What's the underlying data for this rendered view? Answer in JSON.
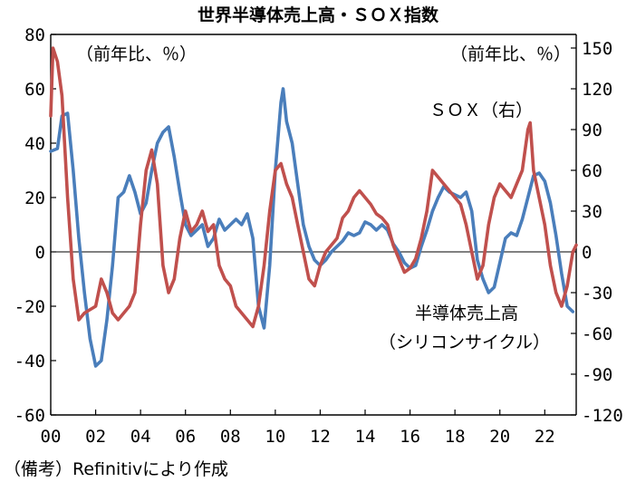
{
  "chart_data": {
    "type": "line",
    "title": "世界半導体売上高・ＳＯＸ指数",
    "left_axis": {
      "unit_label": "（前年比、％）",
      "ylim": [
        -60,
        80
      ],
      "ticks": [
        "80",
        "60",
        "40",
        "20",
        "0",
        "-20",
        "-40",
        "-60"
      ]
    },
    "right_axis": {
      "unit_label": "（前年比、％）",
      "ylim": [
        -120,
        160
      ],
      "ticks": [
        "150",
        "120",
        "90",
        "60",
        "30",
        "0",
        "-30",
        "-60",
        "-90",
        "-120"
      ]
    },
    "x_ticks": [
      "00",
      "02",
      "04",
      "06",
      "08",
      "10",
      "12",
      "14",
      "16",
      "18",
      "20",
      "22"
    ],
    "xlim": [
      2000,
      2023.4
    ],
    "source": "（備考）Refinitivにより作成",
    "series": [
      {
        "name": "半導体売上高",
        "name_line2": "（シリコンサイクル）",
        "axis": "left",
        "color": "#4a7ebb",
        "points": [
          [
            2000.0,
            37
          ],
          [
            2000.3,
            38
          ],
          [
            2000.5,
            50
          ],
          [
            2000.75,
            51
          ],
          [
            2001.0,
            30
          ],
          [
            2001.25,
            5
          ],
          [
            2001.5,
            -15
          ],
          [
            2001.75,
            -32
          ],
          [
            2002.0,
            -42
          ],
          [
            2002.25,
            -40
          ],
          [
            2002.5,
            -25
          ],
          [
            2002.75,
            -5
          ],
          [
            2003.0,
            20
          ],
          [
            2003.25,
            22
          ],
          [
            2003.5,
            28
          ],
          [
            2003.75,
            22
          ],
          [
            2004.0,
            14
          ],
          [
            2004.25,
            18
          ],
          [
            2004.5,
            30
          ],
          [
            2004.75,
            40
          ],
          [
            2005.0,
            44
          ],
          [
            2005.25,
            46
          ],
          [
            2005.5,
            35
          ],
          [
            2005.75,
            22
          ],
          [
            2006.0,
            10
          ],
          [
            2006.25,
            6
          ],
          [
            2006.5,
            8
          ],
          [
            2006.75,
            10
          ],
          [
            2007.0,
            2
          ],
          [
            2007.25,
            5
          ],
          [
            2007.5,
            12
          ],
          [
            2007.75,
            8
          ],
          [
            2008.0,
            10
          ],
          [
            2008.25,
            12
          ],
          [
            2008.5,
            10
          ],
          [
            2008.75,
            14
          ],
          [
            2009.0,
            5
          ],
          [
            2009.25,
            -20
          ],
          [
            2009.5,
            -28
          ],
          [
            2009.75,
            -5
          ],
          [
            2010.0,
            30
          ],
          [
            2010.25,
            55
          ],
          [
            2010.35,
            60
          ],
          [
            2010.5,
            48
          ],
          [
            2010.75,
            40
          ],
          [
            2011.0,
            25
          ],
          [
            2011.25,
            10
          ],
          [
            2011.5,
            2
          ],
          [
            2011.75,
            -3
          ],
          [
            2012.0,
            -5
          ],
          [
            2012.25,
            -3
          ],
          [
            2012.5,
            0
          ],
          [
            2012.75,
            2
          ],
          [
            2013.0,
            4
          ],
          [
            2013.25,
            7
          ],
          [
            2013.5,
            6
          ],
          [
            2013.75,
            7
          ],
          [
            2014.0,
            11
          ],
          [
            2014.25,
            10
          ],
          [
            2014.5,
            8
          ],
          [
            2014.75,
            10
          ],
          [
            2015.0,
            8
          ],
          [
            2015.25,
            3
          ],
          [
            2015.5,
            0
          ],
          [
            2015.75,
            -4
          ],
          [
            2016.0,
            -6
          ],
          [
            2016.25,
            -5
          ],
          [
            2016.5,
            2
          ],
          [
            2016.75,
            8
          ],
          [
            2017.0,
            15
          ],
          [
            2017.25,
            20
          ],
          [
            2017.5,
            24
          ],
          [
            2017.75,
            22
          ],
          [
            2018.0,
            21
          ],
          [
            2018.25,
            20
          ],
          [
            2018.5,
            22
          ],
          [
            2018.75,
            15
          ],
          [
            2019.0,
            -3
          ],
          [
            2019.25,
            -10
          ],
          [
            2019.5,
            -15
          ],
          [
            2019.75,
            -13
          ],
          [
            2020.0,
            -4
          ],
          [
            2020.25,
            5
          ],
          [
            2020.5,
            7
          ],
          [
            2020.75,
            6
          ],
          [
            2021.0,
            12
          ],
          [
            2021.25,
            20
          ],
          [
            2021.5,
            28
          ],
          [
            2021.75,
            29
          ],
          [
            2022.0,
            26
          ],
          [
            2022.25,
            18
          ],
          [
            2022.5,
            6
          ],
          [
            2022.75,
            -8
          ],
          [
            2023.0,
            -20
          ],
          [
            2023.25,
            -22
          ]
        ]
      },
      {
        "name": "ＳＯＸ（右）",
        "axis": "right",
        "color": "#c0504d",
        "points": [
          [
            2000.0,
            100
          ],
          [
            2000.1,
            150
          ],
          [
            2000.3,
            140
          ],
          [
            2000.5,
            115
          ],
          [
            2000.75,
            40
          ],
          [
            2001.0,
            -20
          ],
          [
            2001.25,
            -50
          ],
          [
            2001.5,
            -45
          ],
          [
            2002.0,
            -40
          ],
          [
            2002.25,
            -20
          ],
          [
            2002.5,
            -30
          ],
          [
            2002.75,
            -45
          ],
          [
            2003.0,
            -50
          ],
          [
            2003.25,
            -45
          ],
          [
            2003.5,
            -40
          ],
          [
            2003.75,
            -30
          ],
          [
            2004.0,
            20
          ],
          [
            2004.25,
            60
          ],
          [
            2004.5,
            75
          ],
          [
            2004.75,
            50
          ],
          [
            2005.0,
            -10
          ],
          [
            2005.25,
            -30
          ],
          [
            2005.5,
            -20
          ],
          [
            2005.75,
            10
          ],
          [
            2006.0,
            30
          ],
          [
            2006.25,
            15
          ],
          [
            2006.5,
            20
          ],
          [
            2006.75,
            30
          ],
          [
            2007.0,
            15
          ],
          [
            2007.25,
            20
          ],
          [
            2007.5,
            -10
          ],
          [
            2007.75,
            -20
          ],
          [
            2008.0,
            -25
          ],
          [
            2008.25,
            -40
          ],
          [
            2008.5,
            -45
          ],
          [
            2008.75,
            -50
          ],
          [
            2009.0,
            -55
          ],
          [
            2009.25,
            -40
          ],
          [
            2009.5,
            -10
          ],
          [
            2009.75,
            30
          ],
          [
            2010.0,
            60
          ],
          [
            2010.25,
            65
          ],
          [
            2010.5,
            50
          ],
          [
            2010.75,
            40
          ],
          [
            2011.0,
            20
          ],
          [
            2011.25,
            0
          ],
          [
            2011.5,
            -20
          ],
          [
            2011.75,
            -25
          ],
          [
            2012.0,
            -10
          ],
          [
            2012.25,
            0
          ],
          [
            2012.5,
            5
          ],
          [
            2012.75,
            10
          ],
          [
            2013.0,
            25
          ],
          [
            2013.25,
            30
          ],
          [
            2013.5,
            40
          ],
          [
            2013.75,
            45
          ],
          [
            2014.0,
            40
          ],
          [
            2014.25,
            35
          ],
          [
            2014.5,
            28
          ],
          [
            2014.75,
            25
          ],
          [
            2015.0,
            20
          ],
          [
            2015.25,
            5
          ],
          [
            2015.5,
            -5
          ],
          [
            2015.75,
            -15
          ],
          [
            2016.0,
            -12
          ],
          [
            2016.25,
            -5
          ],
          [
            2016.5,
            10
          ],
          [
            2016.75,
            30
          ],
          [
            2017.0,
            60
          ],
          [
            2017.25,
            55
          ],
          [
            2017.5,
            50
          ],
          [
            2017.75,
            45
          ],
          [
            2018.0,
            40
          ],
          [
            2018.25,
            35
          ],
          [
            2018.5,
            20
          ],
          [
            2018.75,
            0
          ],
          [
            2019.0,
            -20
          ],
          [
            2019.25,
            -10
          ],
          [
            2019.5,
            20
          ],
          [
            2019.75,
            40
          ],
          [
            2020.0,
            50
          ],
          [
            2020.25,
            45
          ],
          [
            2020.5,
            40
          ],
          [
            2020.75,
            50
          ],
          [
            2021.0,
            60
          ],
          [
            2021.25,
            90
          ],
          [
            2021.35,
            95
          ],
          [
            2021.5,
            60
          ],
          [
            2021.75,
            40
          ],
          [
            2022.0,
            20
          ],
          [
            2022.25,
            -10
          ],
          [
            2022.5,
            -30
          ],
          [
            2022.75,
            -40
          ],
          [
            2023.0,
            -25
          ],
          [
            2023.25,
            0
          ],
          [
            2023.4,
            5
          ]
        ]
      }
    ]
  }
}
